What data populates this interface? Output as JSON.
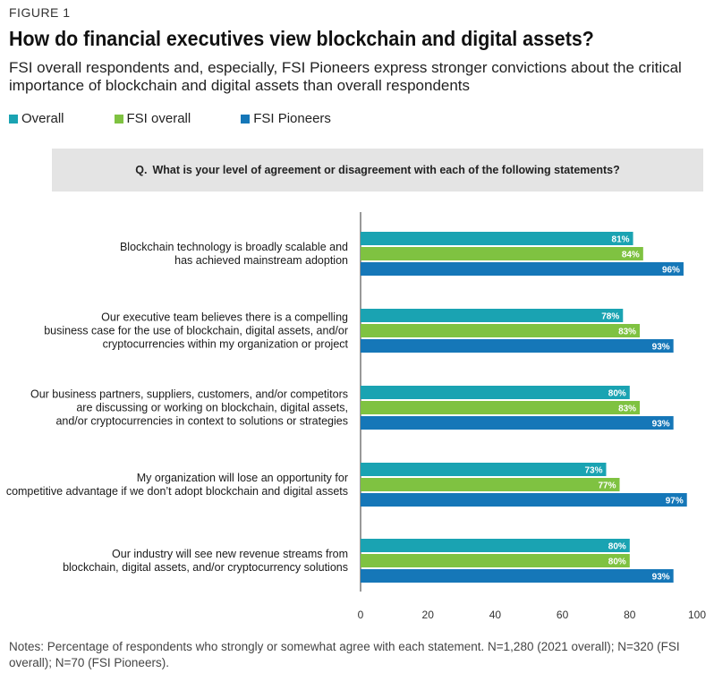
{
  "figure_label": "FIGURE 1",
  "title": "How do financial executives view blockchain and digital assets?",
  "subtitle": "FSI overall respondents and, especially, FSI Pioneers express stronger convictions about the critical importance of blockchain and digital assets than overall respondents",
  "question": {
    "prefix": "Q.",
    "text": "What is your level of agreement or disagreement with each of the following statements?"
  },
  "notes": "Notes: Percentage of respondents who strongly or somewhat agree with each statement. N=1,280 (2021 overall); N=320 (FSI overall); N=70 (FSI Pioneers).",
  "colors": {
    "overall": "#1aa3b2",
    "fsi_overall": "#7fc241",
    "fsi_pioneers": "#1577b8"
  },
  "chart_data": {
    "type": "bar",
    "orientation": "horizontal",
    "categories": [
      [
        "Blockchain technology is broadly scalable and",
        "has achieved mainstream adoption"
      ],
      [
        "Our executive team believes there is a compelling",
        "business case for the use of blockchain, digital assets, and/or",
        "cryptocurrencies within my organization or project"
      ],
      [
        "Our business partners, suppliers, customers, and/or competitors",
        "are discussing or working on blockchain, digital assets,",
        "and/or cryptocurrencies in context to solutions or strategies"
      ],
      [
        "My organization will lose an opportunity for",
        "competitive advantage if we don’t adopt blockchain and digital assets"
      ],
      [
        "Our industry will see new revenue streams from",
        "blockchain, digital assets, and/or cryptocurrency solutions"
      ]
    ],
    "series": [
      {
        "name": "Overall",
        "color": "#1aa3b2",
        "values": [
          81,
          78,
          80,
          73,
          80
        ]
      },
      {
        "name": "FSI overall",
        "color": "#7fc241",
        "values": [
          84,
          83,
          83,
          77,
          80
        ]
      },
      {
        "name": "FSI Pioneers",
        "color": "#1577b8",
        "values": [
          96,
          93,
          93,
          97,
          93
        ]
      }
    ],
    "value_suffix": "%",
    "xlim": [
      0,
      100
    ],
    "xticks": [
      0,
      20,
      40,
      60,
      80,
      100
    ],
    "grid": false,
    "legend_position": "top-left"
  }
}
